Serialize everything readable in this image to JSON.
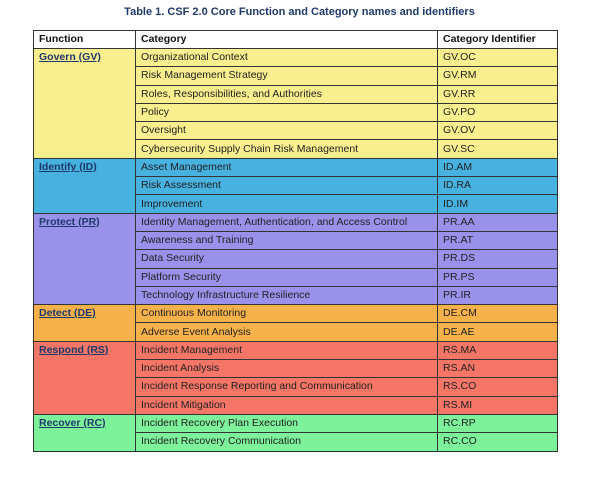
{
  "header": {
    "title": "Table 1. CSF 2.0 Core Function and Category names and identifiers"
  },
  "table": {
    "columns": [
      "Function",
      "Category",
      "Category Identifier"
    ],
    "groups": [
      {
        "function": "Govern (GV)",
        "rows": [
          [
            "Organizational Context",
            "GV.OC"
          ],
          [
            "Risk Management Strategy",
            "GV.RM"
          ],
          [
            "Roles, Responsibilities, and Authorities",
            "GV.RR"
          ],
          [
            "Policy",
            "GV.PO"
          ],
          [
            "Oversight",
            "GV.OV"
          ],
          [
            "Cybersecurity Supply Chain Risk Management",
            "GV.SC"
          ]
        ]
      },
      {
        "function": "Identify (ID)",
        "rows": [
          [
            "Asset Management",
            "ID.AM"
          ],
          [
            "Risk Assessment",
            "ID.RA"
          ],
          [
            "Improvement",
            "ID.IM"
          ]
        ]
      },
      {
        "function": "Protect (PR)",
        "rows": [
          [
            "Identity Management, Authentication, and Access Control",
            "PR.AA"
          ],
          [
            "Awareness and Training",
            "PR.AT"
          ],
          [
            "Data Security",
            "PR.DS"
          ],
          [
            "Platform Security",
            "PR.PS"
          ],
          [
            "Technology Infrastructure Resilience",
            "PR.IR"
          ]
        ]
      },
      {
        "function": "Detect (DE)",
        "rows": [
          [
            "Continuous Monitoring",
            "DE.CM"
          ],
          [
            "Adverse Event Analysis",
            "DE.AE"
          ]
        ]
      },
      {
        "function": "Respond (RS)",
        "rows": [
          [
            "Incident Management",
            "RS.MA"
          ],
          [
            "Incident Analysis",
            "RS.AN"
          ],
          [
            "Incident Response Reporting and Communication",
            "RS.CO"
          ],
          [
            "Incident Mitigation",
            "RS.MI"
          ]
        ]
      },
      {
        "function": "Recover (RC)",
        "rows": [
          [
            "Incident Recovery Plan Execution",
            "RC.RP"
          ],
          [
            "Incident Recovery Communication",
            "RC.CO"
          ]
        ]
      }
    ]
  }
}
